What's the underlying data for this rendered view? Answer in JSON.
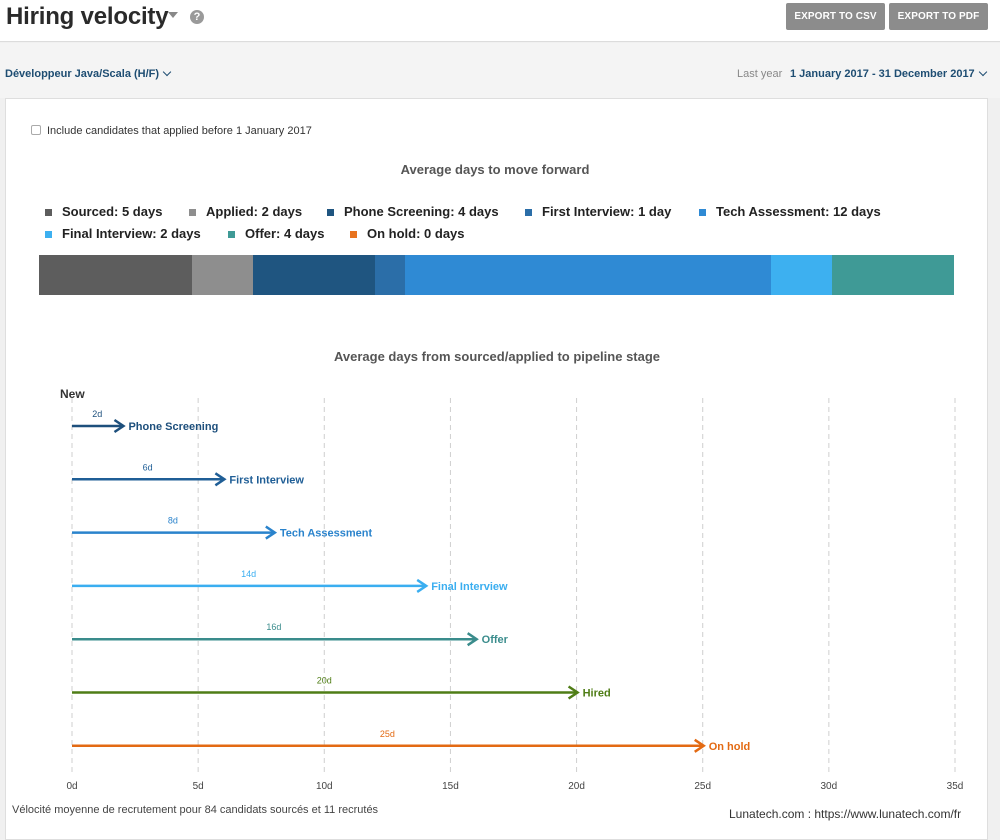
{
  "header": {
    "title": "Hiring velocity",
    "help_icon": "question-circle-icon",
    "export_csv_label": "EXPORT TO CSV",
    "export_pdf_label": "EXPORT TO PDF"
  },
  "filters": {
    "job": "Développeur Java/Scala (H/F)",
    "period_label": "Last year",
    "date_range": "1 January 2017 - 31 December 2017"
  },
  "options": {
    "include_earlier_label": "Include candidates that applied before 1 January 2017",
    "include_earlier_checked": false
  },
  "chart_data": [
    {
      "type": "bar",
      "title": "Average days to move forward",
      "orientation": "stacked-horizontal",
      "series": [
        {
          "name": "Sourced",
          "label": "Sourced: 5 days",
          "value": 5,
          "color": "#5d5d5d"
        },
        {
          "name": "Applied",
          "label": "Applied: 2 days",
          "value": 2,
          "color": "#8e8e8e"
        },
        {
          "name": "Phone Screening",
          "label": "Phone Screening: 4 days",
          "value": 4,
          "color": "#1f5580"
        },
        {
          "name": "First Interview",
          "label": "First Interview: 1 day",
          "value": 1,
          "color": "#2b6ea8"
        },
        {
          "name": "Tech Assessment",
          "label": "Tech Assessment: 12 days",
          "value": 12,
          "color": "#2f8ad4"
        },
        {
          "name": "Final Interview",
          "label": "Final Interview: 2 days",
          "value": 2,
          "color": "#3db0f0"
        },
        {
          "name": "Offer",
          "label": "Offer: 4 days",
          "value": 4,
          "color": "#3f9a96"
        },
        {
          "name": "On hold",
          "label": "On hold: 0 days",
          "value": 0,
          "color": "#e8731f"
        }
      ]
    },
    {
      "type": "bar",
      "title": "Average days from sourced/applied to pipeline stage",
      "orientation": "horizontal-arrows",
      "start_label": "New",
      "x_ticks": [
        "0d",
        "5d",
        "10d",
        "15d",
        "20d",
        "25d",
        "30d",
        "35d"
      ],
      "x_range": [
        0,
        35
      ],
      "grid": "dashed-vertical",
      "stages": [
        {
          "name": "Phone Screening",
          "days": 2,
          "days_label": "2d",
          "color": "#1d4f7c"
        },
        {
          "name": "First Interview",
          "days": 6,
          "days_label": "6d",
          "color": "#1f5e96"
        },
        {
          "name": "Tech Assessment",
          "days": 8,
          "days_label": "8d",
          "color": "#2a83cc"
        },
        {
          "name": "Final Interview",
          "days": 14,
          "days_label": "14d",
          "color": "#3aaef0"
        },
        {
          "name": "Offer",
          "days": 16,
          "days_label": "16d",
          "color": "#3a8c8c"
        },
        {
          "name": "Hired",
          "days": 20,
          "days_label": "20d",
          "color": "#4f7d16"
        },
        {
          "name": "On hold",
          "days": 25,
          "days_label": "25d",
          "color": "#e36a13"
        }
      ]
    }
  ],
  "footer": {
    "summary": "Vélocité moyenne de recrutement pour 84 candidats sourcés et 11 recrutés",
    "credit": "Lunatech.com : https://www.lunatech.com/fr"
  }
}
